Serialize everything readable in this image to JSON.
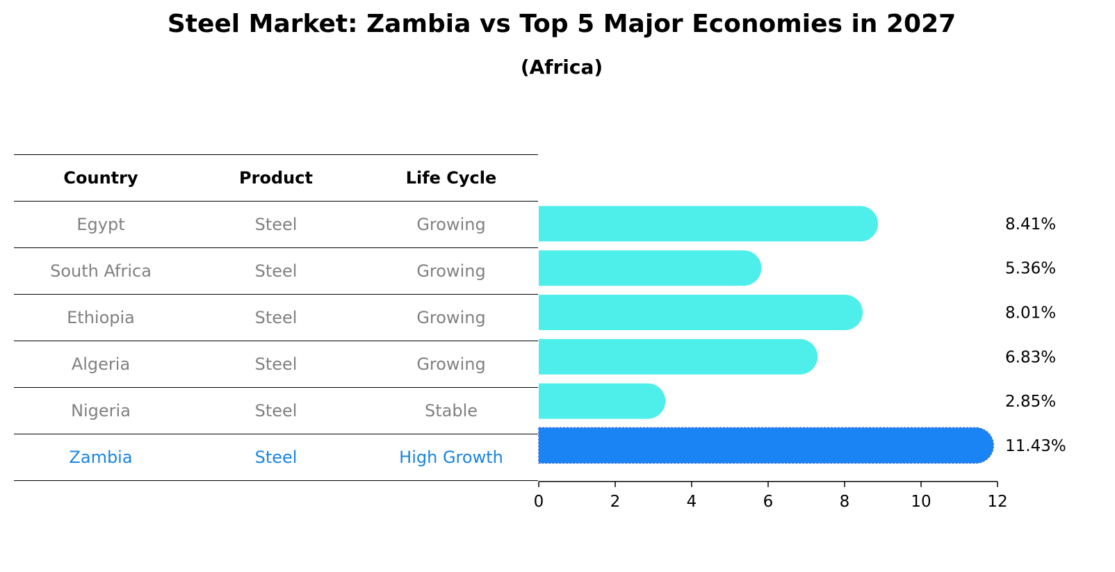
{
  "title": "Steel Market: Zambia vs Top 5 Major Economies in 2027",
  "subtitle": "(Africa)",
  "table": {
    "headers": [
      "Country",
      "Product",
      "Life Cycle"
    ],
    "rows": [
      {
        "country": "Egypt",
        "product": "Steel",
        "life_cycle": "Growing"
      },
      {
        "country": "South Africa",
        "product": "Steel",
        "life_cycle": "Growing"
      },
      {
        "country": "Ethiopia",
        "product": "Steel",
        "life_cycle": "Growing"
      },
      {
        "country": "Algeria",
        "product": "Steel",
        "life_cycle": "Growing"
      },
      {
        "country": "Nigeria",
        "product": "Steel",
        "life_cycle": "Stable"
      },
      {
        "country": "Zambia",
        "product": "Steel",
        "life_cycle": "High Growth"
      }
    ]
  },
  "colors": {
    "bar": "#4eeeea",
    "highlight_bar": "#1a84f5",
    "highlight_text": "#1a84e0",
    "muted_text": "#808080"
  },
  "chart_data": {
    "type": "bar",
    "orientation": "horizontal",
    "categories": [
      "Egypt",
      "South Africa",
      "Ethiopia",
      "Algeria",
      "Nigeria",
      "Zambia"
    ],
    "values": [
      8.41,
      5.36,
      8.01,
      6.83,
      2.85,
      11.43
    ],
    "value_labels": [
      "8.41%",
      "5.36%",
      "8.01%",
      "6.83%",
      "2.85%",
      "11.43%"
    ],
    "highlight": "Zambia",
    "xlim": [
      0,
      12
    ],
    "xticks": [
      0,
      2,
      4,
      6,
      8,
      10,
      12
    ],
    "grid": false
  }
}
